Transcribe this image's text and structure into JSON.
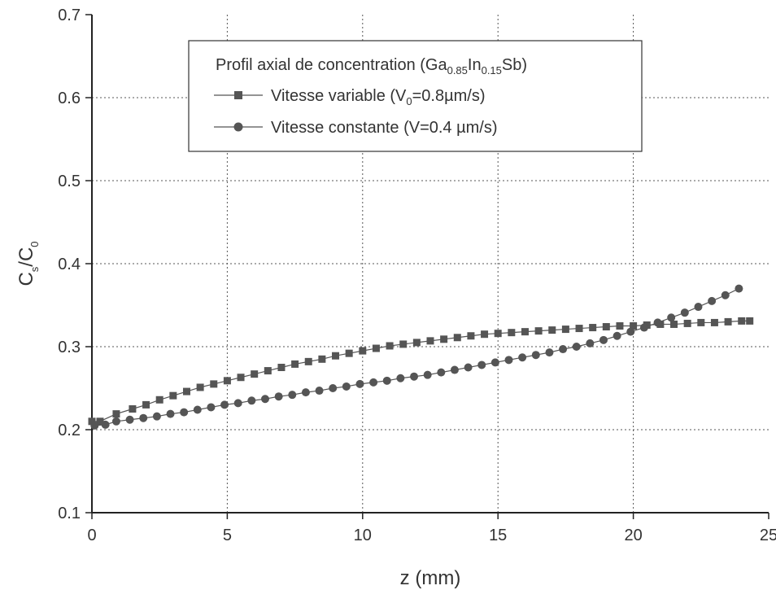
{
  "chart_data": {
    "type": "scatter",
    "xlabel": "z (mm)",
    "ylabel": {
      "main": "C",
      "sub1": "s",
      "mid": "/C",
      "sub2": "0"
    },
    "xlim": [
      0,
      25
    ],
    "ylim": [
      0.1,
      0.7
    ],
    "xticks": [
      "0",
      "5",
      "10",
      "15",
      "20",
      "25"
    ],
    "yticks": [
      "0.1",
      "0.2",
      "0.3",
      "0.4",
      "0.5",
      "0.6",
      "0.7"
    ],
    "grid": true,
    "legend": {
      "placement": "top",
      "title": {
        "pre": "Profil axial de concentration (Ga",
        "s1": "0.85",
        "mid": "In",
        "s2": "0.15",
        "post": "Sb)"
      },
      "entries": [
        {
          "pre": "Vitesse variable (V",
          "sub": "0",
          "post": "=0.8µm/s)",
          "marker": "square"
        },
        {
          "pre": "Vitesse constante (V=0.4 µm/s)",
          "sub": "",
          "post": "",
          "marker": "circle"
        }
      ]
    },
    "series": [
      {
        "label": "Vitesse variable (V0=0.8µm/s)",
        "marker": "square",
        "color": "#555555",
        "x": [
          0.0,
          0.3,
          0.9,
          1.5,
          2.0,
          2.5,
          3.0,
          3.5,
          4.0,
          4.5,
          5.0,
          5.5,
          6.0,
          6.5,
          7.0,
          7.5,
          8.0,
          8.5,
          9.0,
          9.5,
          10.0,
          10.5,
          11.0,
          11.5,
          12.0,
          12.5,
          13.0,
          13.5,
          14.0,
          14.5,
          15.0,
          15.5,
          16.0,
          16.5,
          17.0,
          17.5,
          18.0,
          18.5,
          19.0,
          19.5,
          20.0,
          20.5,
          21.0,
          21.5,
          22.0,
          22.5,
          23.0,
          23.5,
          24.0,
          24.3
        ],
        "y": [
          0.21,
          0.21,
          0.219,
          0.225,
          0.23,
          0.236,
          0.241,
          0.246,
          0.251,
          0.255,
          0.259,
          0.263,
          0.267,
          0.271,
          0.275,
          0.279,
          0.282,
          0.285,
          0.289,
          0.292,
          0.295,
          0.298,
          0.301,
          0.303,
          0.305,
          0.307,
          0.309,
          0.311,
          0.313,
          0.315,
          0.316,
          0.317,
          0.318,
          0.319,
          0.32,
          0.321,
          0.322,
          0.323,
          0.324,
          0.325,
          0.325,
          0.326,
          0.327,
          0.327,
          0.328,
          0.329,
          0.329,
          0.33,
          0.331,
          0.331
        ]
      },
      {
        "label": "Vitesse constante (V=0.4 µm/s)",
        "marker": "circle",
        "color": "#555555",
        "x": [
          0.1,
          0.5,
          0.9,
          1.4,
          1.9,
          2.4,
          2.9,
          3.4,
          3.9,
          4.4,
          4.9,
          5.4,
          5.9,
          6.4,
          6.9,
          7.4,
          7.9,
          8.4,
          8.9,
          9.4,
          9.9,
          10.4,
          10.9,
          11.4,
          11.9,
          12.4,
          12.9,
          13.4,
          13.9,
          14.4,
          14.9,
          15.4,
          15.9,
          16.4,
          16.9,
          17.4,
          17.9,
          18.4,
          18.9,
          19.4,
          19.9,
          20.4,
          20.9,
          21.4,
          21.9,
          22.4,
          22.9,
          23.4,
          23.9
        ],
        "y": [
          0.205,
          0.206,
          0.21,
          0.212,
          0.214,
          0.216,
          0.219,
          0.221,
          0.224,
          0.227,
          0.23,
          0.232,
          0.235,
          0.237,
          0.24,
          0.242,
          0.245,
          0.247,
          0.25,
          0.252,
          0.255,
          0.257,
          0.259,
          0.262,
          0.264,
          0.266,
          0.269,
          0.272,
          0.275,
          0.278,
          0.281,
          0.284,
          0.287,
          0.29,
          0.293,
          0.297,
          0.3,
          0.304,
          0.308,
          0.313,
          0.318,
          0.323,
          0.329,
          0.335,
          0.341,
          0.348,
          0.355,
          0.362,
          0.37
        ]
      }
    ]
  }
}
